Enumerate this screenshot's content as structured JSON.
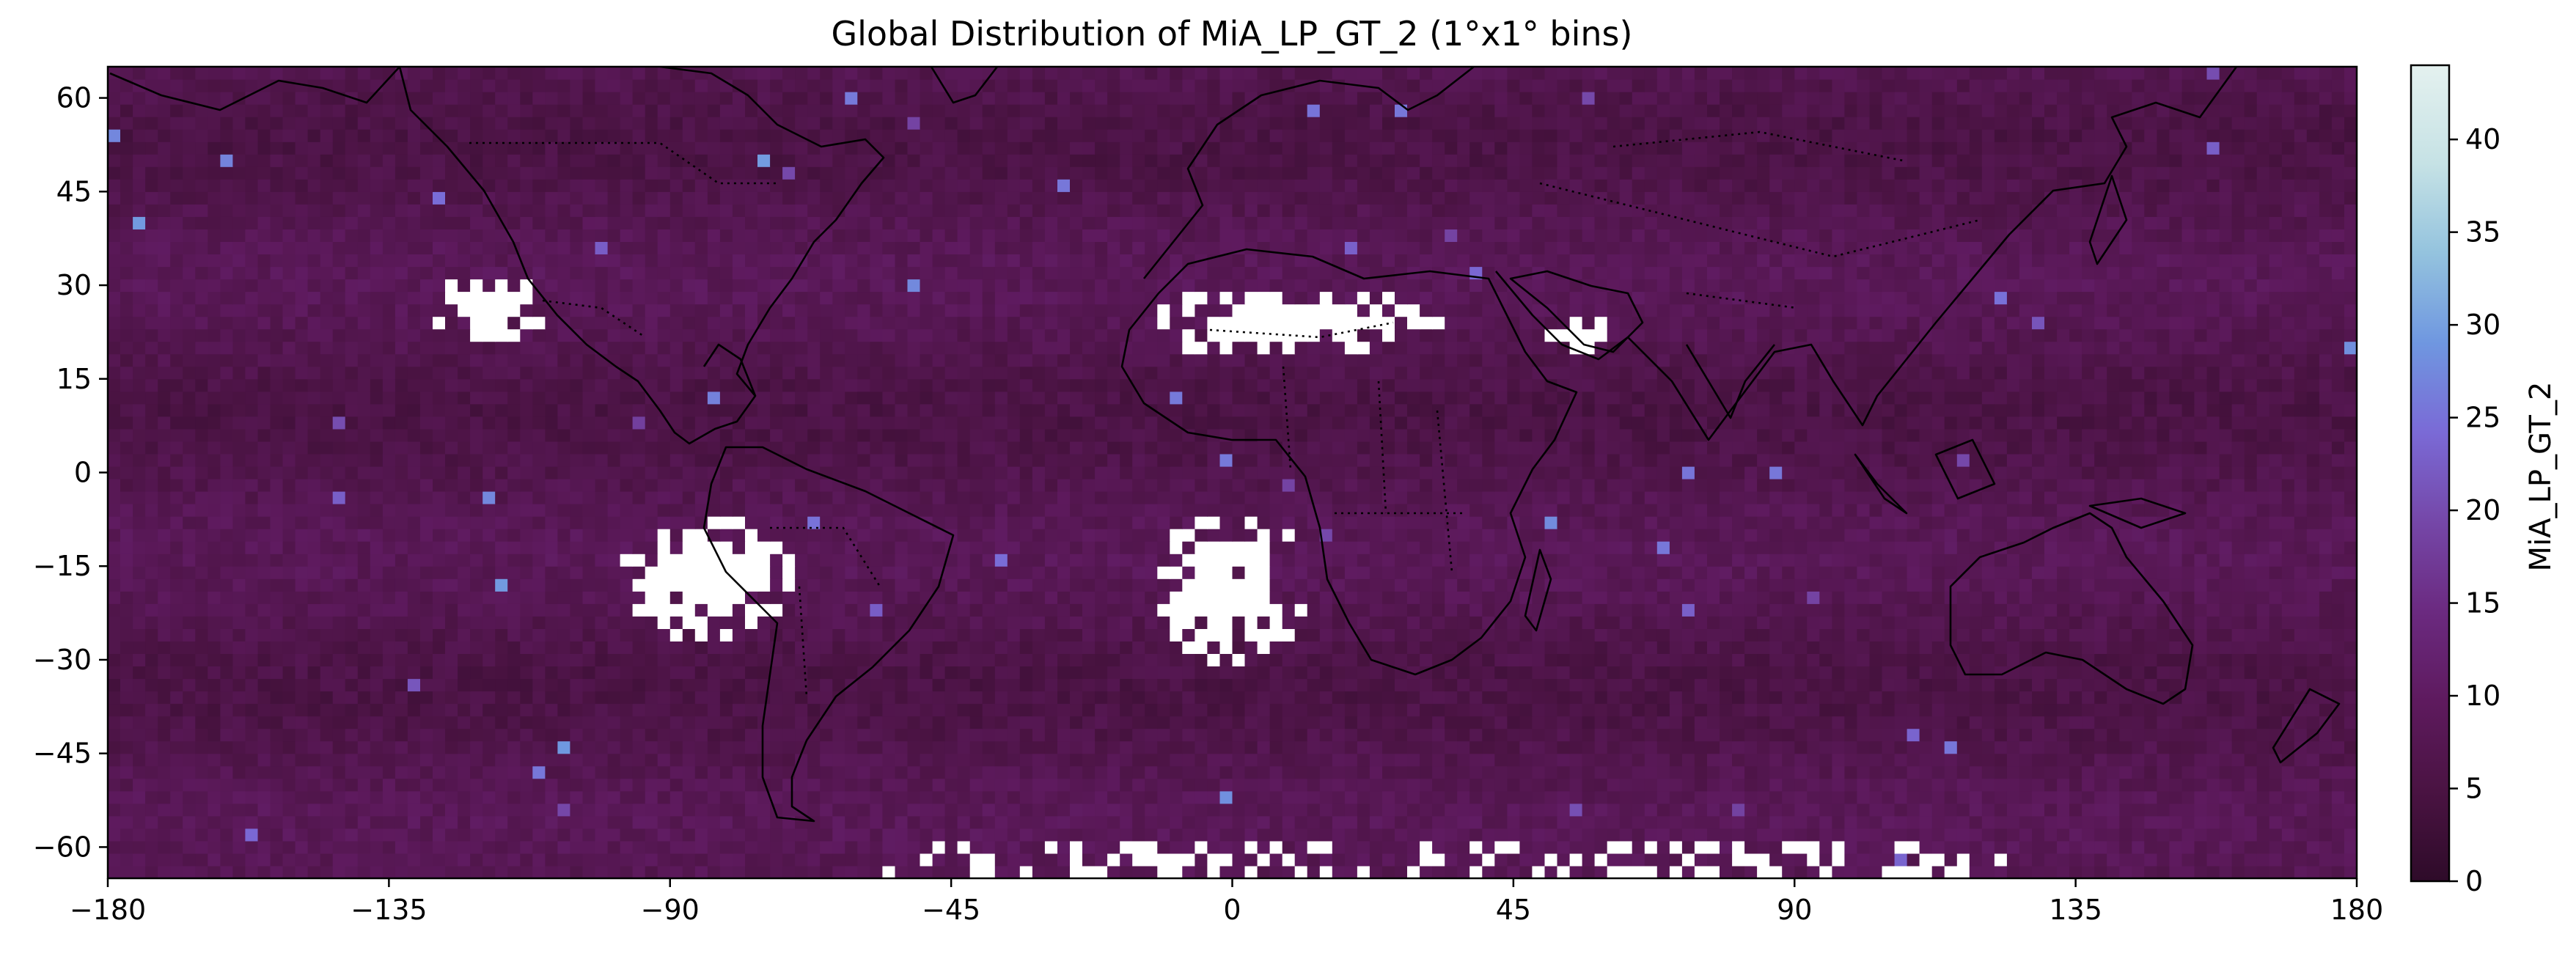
{
  "chart_data": {
    "type": "heatmap",
    "title": "Global Distribution of MiA_LP_GT_2 (1°x1° bins)",
    "xlabel": "",
    "ylabel": "",
    "xlim": [
      -180,
      180
    ],
    "ylim": [
      -65,
      65
    ],
    "xticks": [
      -180,
      -135,
      -90,
      -45,
      0,
      45,
      90,
      135,
      180
    ],
    "xtick_labels": [
      "−180",
      "−135",
      "−90",
      "−45",
      "0",
      "45",
      "90",
      "135",
      "180"
    ],
    "yticks": [
      60,
      45,
      30,
      15,
      0,
      -15,
      -30,
      -45,
      -60
    ],
    "ytick_labels": [
      "60",
      "45",
      "30",
      "15",
      "0",
      "−15",
      "−30",
      "−45",
      "−60"
    ],
    "bin_size_deg": 1,
    "background_value_range": [
      3,
      10
    ],
    "colorbar": {
      "label": "MiA_LP_GT_2",
      "min": 0,
      "max": 44,
      "ticks": [
        0,
        5,
        10,
        15,
        20,
        25,
        30,
        35,
        40
      ],
      "tick_labels": [
        "0",
        "5",
        "10",
        "15",
        "20",
        "25",
        "30",
        "35",
        "40"
      ],
      "colors": [
        "#2e0b29",
        "#4a1342",
        "#5e1a5e",
        "#6b2a80",
        "#7547a8",
        "#7a6ad6",
        "#6f97e0",
        "#94c3de",
        "#c6e2e5",
        "#e4f1ef"
      ]
    },
    "missing_data_regions": [
      {
        "region": "NE Pacific off Baja California",
        "lon": [
          -128,
          -110
        ],
        "lat": [
          21,
          32
        ]
      },
      {
        "region": "SE Pacific off Peru/Chile",
        "lon": [
          -98,
          -70
        ],
        "lat": [
          -27,
          -7
        ]
      },
      {
        "region": "SE Atlantic off Namibia/Angola",
        "lon": [
          -12,
          12
        ],
        "lat": [
          -31,
          -5
        ]
      },
      {
        "region": "Sahara / NW Africa",
        "lon": [
          -14,
          34
        ],
        "lat": [
          18,
          30
        ]
      },
      {
        "region": "Arabian Peninsula",
        "lon": [
          48,
          62
        ],
        "lat": [
          18,
          26
        ]
      },
      {
        "region": "Southern Ocean band",
        "lon": [
          -55,
          125
        ],
        "lat": [
          -65,
          -59
        ]
      }
    ],
    "overlay": "coastlines and country borders",
    "grid": false,
    "legend": "colorbar-right"
  }
}
